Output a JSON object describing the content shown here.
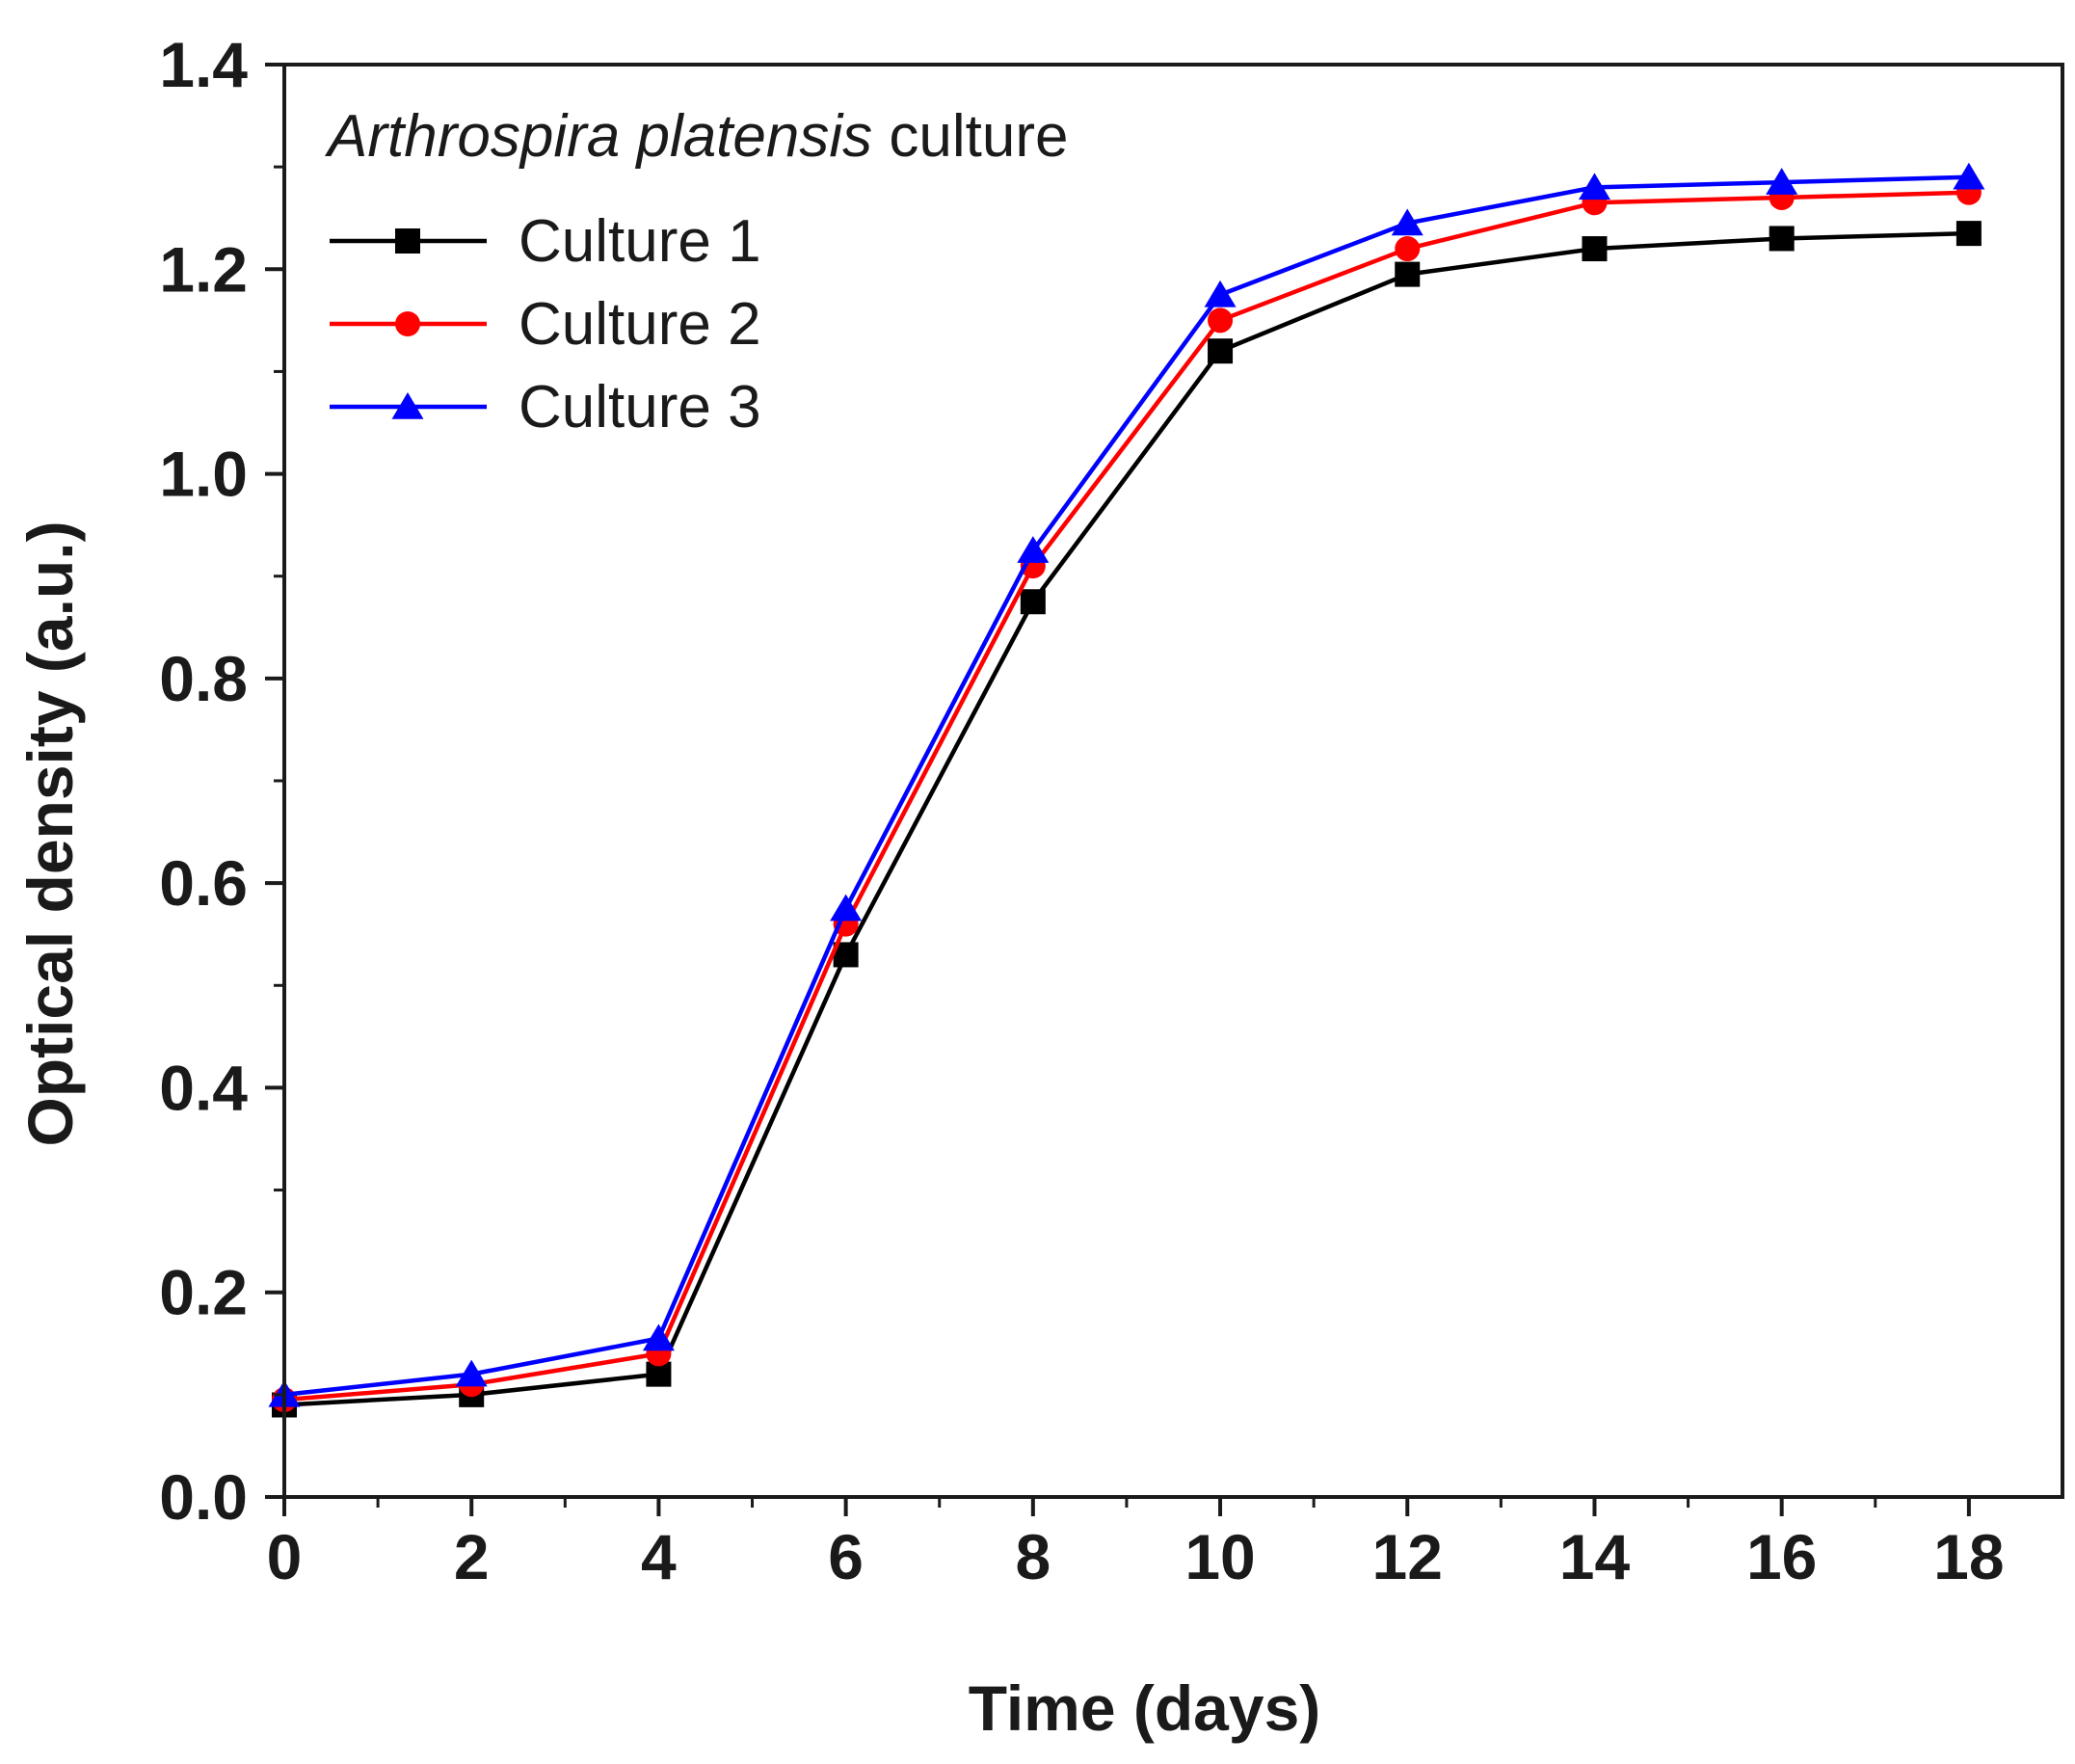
{
  "chart_data": {
    "type": "line",
    "title": "",
    "xlabel": "Time (days)",
    "ylabel": "Optical density (a.u.)",
    "xlim": [
      0,
      19
    ],
    "ylim": [
      0,
      1.4
    ],
    "x_ticks": [
      0,
      2,
      4,
      6,
      8,
      10,
      12,
      14,
      16,
      18
    ],
    "y_ticks": [
      0.0,
      0.2,
      0.4,
      0.6,
      0.8,
      1.0,
      1.2,
      1.4
    ],
    "x_tick_labels": [
      "0",
      "2",
      "4",
      "6",
      "8",
      "10",
      "12",
      "14",
      "16",
      "18"
    ],
    "y_tick_labels": [
      "0.0",
      "0.2",
      "0.4",
      "0.6",
      "0.8",
      "1.0",
      "1.2",
      "1.4"
    ],
    "grid": false,
    "legend": {
      "placement": "top-left",
      "title_italic": "Arthrospira platensis",
      "title_rest": " culture"
    },
    "x": [
      0,
      2,
      4,
      6,
      8,
      10,
      12,
      14,
      16,
      18
    ],
    "series": [
      {
        "name": "Culture 1",
        "color": "#000000",
        "marker": "square",
        "values": [
          0.09,
          0.1,
          0.12,
          0.53,
          0.875,
          1.12,
          1.195,
          1.22,
          1.23,
          1.235
        ]
      },
      {
        "name": "Culture 2",
        "color": "#ff0000",
        "marker": "circle",
        "values": [
          0.095,
          0.11,
          0.14,
          0.56,
          0.91,
          1.15,
          1.22,
          1.265,
          1.27,
          1.275
        ]
      },
      {
        "name": "Culture 3",
        "color": "#0000ff",
        "marker": "triangle",
        "values": [
          0.1,
          0.12,
          0.155,
          0.575,
          0.925,
          1.175,
          1.245,
          1.28,
          1.285,
          1.29
        ]
      }
    ]
  }
}
